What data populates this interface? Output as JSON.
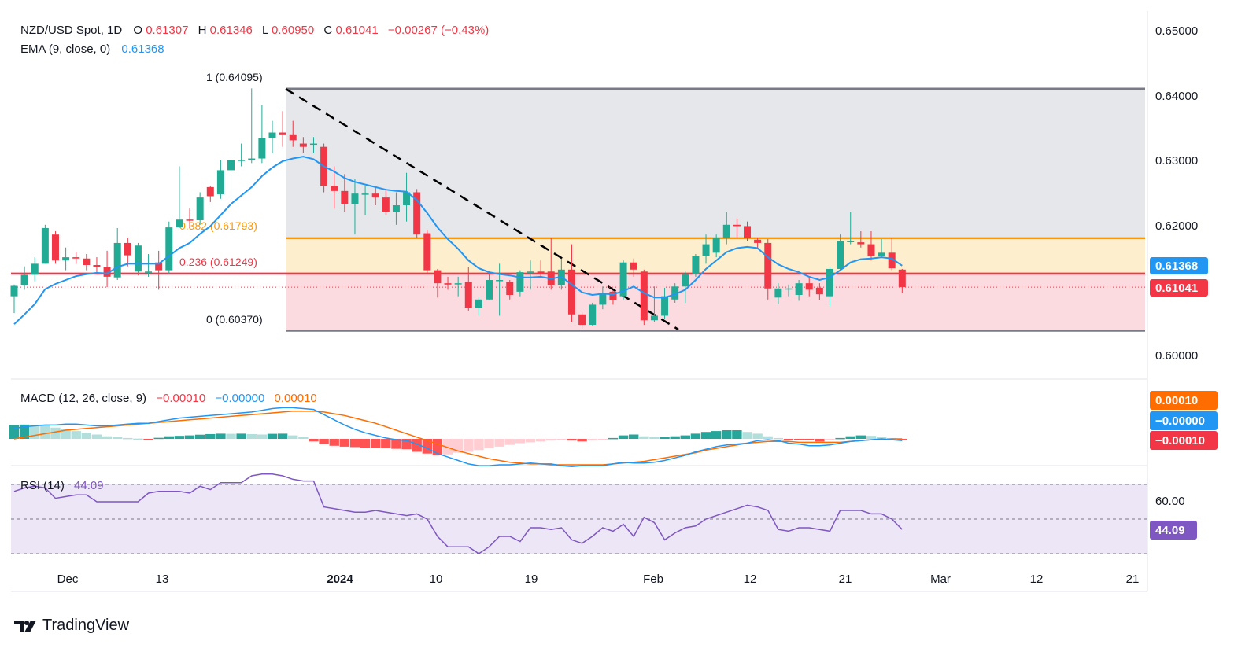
{
  "header": {
    "symbol": "NZD/USD Spot, 1D",
    "o_label": "O",
    "o_value": "0.61307",
    "h_label": "H",
    "h_value": "0.61346",
    "l_label": "L",
    "l_value": "0.60950",
    "c_label": "C",
    "c_value": "0.61041",
    "change": "−0.00267 (−0.43%)",
    "ema_label": "EMA (9, close, 0)",
    "ema_value": "0.61368"
  },
  "macd_header": {
    "label": "MACD (12, 26, close, 9)",
    "v1": "−0.00010",
    "v2": "−0.00000",
    "v3": "0.00010"
  },
  "rsi_header": {
    "label": "RSI (14)",
    "value": "44.09"
  },
  "fib_labels": [
    "1 (0.64095)",
    "0.382 (0.61793)",
    "0.236 (0.61249)",
    "0 (0.60370)"
  ],
  "price_badges": {
    "ema": "0.61368",
    "close": "0.61041"
  },
  "macd_badges": [
    "0.00010",
    "−0.00000",
    "−0.00010"
  ],
  "rsi_badge": "44.09",
  "brand": "TradingView",
  "colors": {
    "up": "#22ab94",
    "down": "#f23645",
    "ema": "#2196f3",
    "fib_top": "#787b86",
    "fib_382": "#ff9800",
    "fib_236": "#f23645",
    "macd_line": "#2196f3",
    "signal_line": "#ff6d00",
    "rsi_line": "#7e57c2",
    "fill_gray": "#e6e7ea",
    "fill_orange": "#fdeecd",
    "fill_red": "#fbdbe0",
    "rsi_band": "#ede6f6"
  },
  "chart_data": {
    "type": "candlestick",
    "price_axis": {
      "ticks": [
        "0.65000",
        "0.64000",
        "0.63000",
        "0.62000",
        "0.60000"
      ]
    },
    "time_axis": {
      "ticks": [
        "Dec",
        "13",
        "2024",
        "10",
        "19",
        "Feb",
        "12",
        "21",
        "Mar",
        "12",
        "21"
      ]
    },
    "rsi_axis": {
      "ticks": [
        "60.00"
      ],
      "bands": [
        70,
        50,
        30
      ]
    },
    "ohlc": [
      [
        0.609,
        0.6106,
        0.6064,
        0.6108
      ],
      [
        0.6107,
        0.6123,
        0.61,
        0.6136
      ],
      [
        0.6123,
        0.614,
        0.6113,
        0.615
      ],
      [
        0.614,
        0.6195,
        0.614,
        0.62
      ],
      [
        0.6185,
        0.6145,
        0.614,
        0.619
      ],
      [
        0.6145,
        0.615,
        0.613,
        0.6165
      ],
      [
        0.615,
        0.6148,
        0.614,
        0.6158
      ],
      [
        0.6148,
        0.6138,
        0.613,
        0.6155
      ],
      [
        0.6138,
        0.6135,
        0.6125,
        0.615
      ],
      [
        0.6135,
        0.612,
        0.6104,
        0.616
      ],
      [
        0.6119,
        0.6172,
        0.6115,
        0.6195
      ],
      [
        0.6172,
        0.6153,
        0.6136,
        0.618
      ],
      [
        0.6128,
        0.6168,
        0.6122,
        0.6172
      ],
      [
        0.6128,
        0.6128,
        0.612,
        0.6155
      ],
      [
        0.6142,
        0.613,
        0.61,
        0.616
      ],
      [
        0.613,
        0.6196,
        0.6125,
        0.6205
      ],
      [
        0.6196,
        0.6208,
        0.6195,
        0.629
      ],
      [
        0.6208,
        0.6207,
        0.6195,
        0.6225
      ],
      [
        0.6207,
        0.6242,
        0.62,
        0.625
      ],
      [
        0.6258,
        0.6244,
        0.6235,
        0.626
      ],
      [
        0.6247,
        0.6284,
        0.624,
        0.63
      ],
      [
        0.6284,
        0.63,
        0.624,
        0.63
      ],
      [
        0.63,
        0.63,
        0.629,
        0.6325
      ],
      [
        0.63,
        0.6302,
        0.6295,
        0.641
      ],
      [
        0.6302,
        0.6333,
        0.6295,
        0.6385
      ],
      [
        0.6333,
        0.6342,
        0.631,
        0.636
      ],
      [
        0.6342,
        0.6338,
        0.632,
        0.6375
      ],
      [
        0.6338,
        0.633,
        0.632,
        0.636
      ],
      [
        0.6325,
        0.632,
        0.631,
        0.6335
      ],
      [
        0.6325,
        0.6325,
        0.631,
        0.6335
      ],
      [
        0.632,
        0.626,
        0.625,
        0.6325
      ],
      [
        0.626,
        0.6252,
        0.6225,
        0.629
      ],
      [
        0.6252,
        0.6232,
        0.622,
        0.6278
      ],
      [
        0.6232,
        0.6248,
        0.6185,
        0.627
      ],
      [
        0.6248,
        0.6248,
        0.6215,
        0.626
      ],
      [
        0.6248,
        0.6242,
        0.623,
        0.626
      ],
      [
        0.6242,
        0.622,
        0.6215,
        0.6255
      ],
      [
        0.622,
        0.623,
        0.62,
        0.625
      ],
      [
        0.623,
        0.625,
        0.6205,
        0.628
      ],
      [
        0.625,
        0.6185,
        0.618,
        0.6255
      ],
      [
        0.6187,
        0.613,
        0.6125,
        0.6192
      ],
      [
        0.613,
        0.611,
        0.6088,
        0.6132
      ],
      [
        0.611,
        0.6108,
        0.61,
        0.612
      ],
      [
        0.611,
        0.611,
        0.609,
        0.612
      ],
      [
        0.6112,
        0.6072,
        0.6068,
        0.6135
      ],
      [
        0.6072,
        0.6085,
        0.606,
        0.6088
      ],
      [
        0.6085,
        0.6115,
        0.6085,
        0.6125
      ],
      [
        0.6115,
        0.6115,
        0.606,
        0.614
      ],
      [
        0.6112,
        0.6092,
        0.6085,
        0.6115
      ],
      [
        0.6097,
        0.6127,
        0.609,
        0.613
      ],
      [
        0.6127,
        0.6128,
        0.61,
        0.6145
      ],
      [
        0.6128,
        0.6125,
        0.612,
        0.6145
      ],
      [
        0.6128,
        0.6107,
        0.61,
        0.618
      ],
      [
        0.6107,
        0.6131,
        0.61,
        0.6148
      ],
      [
        0.6131,
        0.6062,
        0.605,
        0.617
      ],
      [
        0.6062,
        0.6046,
        0.604,
        0.6065
      ],
      [
        0.6046,
        0.6077,
        0.6045,
        0.608
      ],
      [
        0.6077,
        0.6095,
        0.607,
        0.6105
      ],
      [
        0.6097,
        0.6084,
        0.6077,
        0.6099
      ],
      [
        0.609,
        0.6142,
        0.6085,
        0.6145
      ],
      [
        0.6142,
        0.6131,
        0.612,
        0.6148
      ],
      [
        0.6128,
        0.6053,
        0.6046,
        0.6131
      ],
      [
        0.6053,
        0.606,
        0.605,
        0.6105
      ],
      [
        0.606,
        0.609,
        0.6055,
        0.6103
      ],
      [
        0.6085,
        0.6105,
        0.608,
        0.611
      ],
      [
        0.6105,
        0.6124,
        0.608,
        0.6128
      ],
      [
        0.6124,
        0.6152,
        0.612,
        0.6155
      ],
      [
        0.6152,
        0.617,
        0.614,
        0.6185
      ],
      [
        0.6157,
        0.618,
        0.615,
        0.6185
      ],
      [
        0.618,
        0.62,
        0.617,
        0.622
      ],
      [
        0.62,
        0.6198,
        0.618,
        0.621
      ],
      [
        0.6198,
        0.618,
        0.6175,
        0.6205
      ],
      [
        0.6177,
        0.6172,
        0.6165,
        0.618
      ],
      [
        0.6172,
        0.6102,
        0.6085,
        0.6178
      ],
      [
        0.6088,
        0.6102,
        0.6078,
        0.611
      ],
      [
        0.6102,
        0.6102,
        0.609,
        0.6108
      ],
      [
        0.6092,
        0.611,
        0.6083,
        0.6115
      ],
      [
        0.611,
        0.61,
        0.609,
        0.612
      ],
      [
        0.6103,
        0.6093,
        0.6084,
        0.611
      ],
      [
        0.609,
        0.6132,
        0.6075,
        0.6135
      ],
      [
        0.6132,
        0.6175,
        0.613,
        0.6185
      ],
      [
        0.6175,
        0.6175,
        0.617,
        0.622
      ],
      [
        0.6173,
        0.617,
        0.6165,
        0.619
      ],
      [
        0.617,
        0.6152,
        0.6145,
        0.619
      ],
      [
        0.6152,
        0.6157,
        0.615,
        0.6178
      ],
      [
        0.6157,
        0.6133,
        0.613,
        0.618
      ],
      [
        0.6131,
        0.6104,
        0.6095,
        0.6132
      ]
    ],
    "ema9": [
      0.6047,
      0.6062,
      0.6078,
      0.6101,
      0.6109,
      0.6115,
      0.6121,
      0.6124,
      0.6126,
      0.6125,
      0.6135,
      0.614,
      0.614,
      0.614,
      0.614,
      0.6152,
      0.6164,
      0.6172,
      0.6186,
      0.6198,
      0.6215,
      0.6232,
      0.6245,
      0.6258,
      0.6275,
      0.6288,
      0.6298,
      0.6302,
      0.6305,
      0.6301,
      0.629,
      0.6282,
      0.6272,
      0.6266,
      0.6262,
      0.6258,
      0.6254,
      0.6252,
      0.6251,
      0.6238,
      0.6218,
      0.6196,
      0.6178,
      0.6163,
      0.6145,
      0.6133,
      0.6127,
      0.6124,
      0.6122,
      0.6119,
      0.6119,
      0.612,
      0.6117,
      0.612,
      0.6108,
      0.6096,
      0.6092,
      0.6094,
      0.6093,
      0.6098,
      0.6105,
      0.6095,
      0.6088,
      0.6088,
      0.6093,
      0.61,
      0.6115,
      0.6132,
      0.6145,
      0.6158,
      0.6164,
      0.6166,
      0.6164,
      0.615,
      0.6139,
      0.6132,
      0.6127,
      0.612,
      0.6115,
      0.6119,
      0.613,
      0.6142,
      0.6147,
      0.6148,
      0.615,
      0.6148,
      0.6137
    ],
    "macd_hist": [
      0.0016,
      0.00165,
      0.0016,
      0.00158,
      0.0013,
      0.0011,
      0.0009,
      0.0007,
      0.0005,
      0.0003,
      0.0002,
      0.0001,
      3e-05,
      -0.0001,
      0.00012,
      0.0003,
      0.00035,
      0.0004,
      0.00048,
      0.00055,
      0.0006,
      0.00058,
      0.0006,
      0.00055,
      0.0005,
      0.00058,
      0.0006,
      0.0004,
      0.0002,
      -0.0003,
      -0.0006,
      -0.0008,
      -0.0009,
      -0.00095,
      -0.001,
      -0.00105,
      -0.0011,
      -0.00115,
      -0.0012,
      -0.0015,
      -0.0017,
      -0.0019,
      -0.0018,
      -0.0016,
      -0.0015,
      -0.0013,
      -0.0011,
      -0.0009,
      -0.0007,
      -0.0005,
      -0.0004,
      -0.0003,
      -0.0002,
      -0.0001,
      -0.0002,
      -0.0003,
      -0.0002,
      -0.0001,
      0.0001,
      0.0004,
      0.0005,
      0.0003,
      0.0002,
      0.0002,
      0.0003,
      0.0004,
      0.0006,
      0.0008,
      0.0009,
      0.001,
      0.001,
      0.0008,
      0.0006,
      0.0003,
      0.0001,
      -5e-05,
      -0.00015,
      -0.00015,
      -0.0003,
      -0.0001,
      0.0001,
      0.0003,
      0.0004,
      0.00035,
      0.00025,
      0.0001,
      -0.0001
    ],
    "macd_line": [
      0.0012,
      0.0014,
      0.0015,
      0.0016,
      0.0016,
      0.0017,
      0.0017,
      0.0016,
      0.0015,
      0.0015,
      0.0016,
      0.0017,
      0.0018,
      0.0018,
      0.002,
      0.0022,
      0.0024,
      0.0025,
      0.0026,
      0.0027,
      0.0028,
      0.0029,
      0.003,
      0.0031,
      0.0033,
      0.0035,
      0.0036,
      0.0036,
      0.0035,
      0.0034,
      0.0028,
      0.0022,
      0.0016,
      0.0011,
      0.0007,
      0.0004,
      0.0001,
      -0.0001,
      -0.0002,
      -0.0006,
      -0.0011,
      -0.0017,
      -0.0021,
      -0.0025,
      -0.0029,
      -0.0031,
      -0.0031,
      -0.003,
      -0.003,
      -0.0029,
      -0.0028,
      -0.0029,
      -0.0029,
      -0.0031,
      -0.0032,
      -0.0031,
      -0.0031,
      -0.0031,
      -0.0029,
      -0.0027,
      -0.0028,
      -0.0028,
      -0.0027,
      -0.0025,
      -0.0022,
      -0.0019,
      -0.0015,
      -0.0012,
      -0.0009,
      -0.0007,
      -0.0006,
      -0.0005,
      -0.0002,
      -0.0001,
      -0.0002,
      -0.0005,
      -0.0006,
      -0.0008,
      -0.0008,
      -0.0007,
      -0.0005,
      -0.0003,
      -0.0002,
      -0.0001,
      0.0,
      -0.0001,
      -0.0002
    ],
    "signal_line": [
      0.0,
      0.0002,
      0.0004,
      0.0006,
      0.0008,
      0.001,
      0.0011,
      0.0012,
      0.0013,
      0.0014,
      0.0015,
      0.0016,
      0.0017,
      0.0018,
      0.0019,
      0.002,
      0.0021,
      0.0022,
      0.0023,
      0.0024,
      0.0025,
      0.0026,
      0.0027,
      0.0028,
      0.0029,
      0.003,
      0.0031,
      0.0032,
      0.0032,
      0.0032,
      0.0031,
      0.0029,
      0.0027,
      0.0024,
      0.0021,
      0.0018,
      0.0014,
      0.001,
      0.0006,
      0.0002,
      -0.0002,
      -0.0006,
      -0.001,
      -0.0014,
      -0.0017,
      -0.002,
      -0.0023,
      -0.0025,
      -0.0027,
      -0.0028,
      -0.0029,
      -0.0029,
      -0.003,
      -0.003,
      -0.003,
      -0.003,
      -0.003,
      -0.003,
      -0.0029,
      -0.0028,
      -0.0027,
      -0.0026,
      -0.0024,
      -0.0022,
      -0.002,
      -0.0018,
      -0.0016,
      -0.0013,
      -0.0011,
      -0.0009,
      -0.0007,
      -0.0005,
      -0.0004,
      -0.0003,
      -0.0003,
      -0.0003,
      -0.0004,
      -0.0004,
      -0.0004,
      -0.0004,
      -0.0004,
      -0.0003,
      -0.0002,
      -0.0001,
      -0.0001,
      0.0,
      0.0
    ],
    "rsi": [
      66,
      68,
      69,
      68,
      62,
      63,
      64,
      64,
      60,
      60,
      60,
      60,
      60,
      65,
      66,
      66,
      66,
      65,
      69,
      67,
      71,
      71,
      71,
      75,
      76,
      76,
      75,
      73,
      72,
      72,
      57,
      56,
      55,
      54,
      54,
      55,
      54,
      53,
      52,
      53,
      50,
      40,
      34,
      34,
      34,
      30,
      34,
      40,
      40,
      37,
      45,
      45,
      44,
      45,
      38,
      36,
      40,
      45,
      43,
      47,
      40,
      51,
      48,
      38,
      42,
      45,
      46,
      50,
      52,
      54,
      56,
      58,
      57,
      55,
      44,
      43,
      45,
      45,
      44,
      43,
      55,
      55,
      55,
      53,
      53,
      50,
      44
    ]
  }
}
